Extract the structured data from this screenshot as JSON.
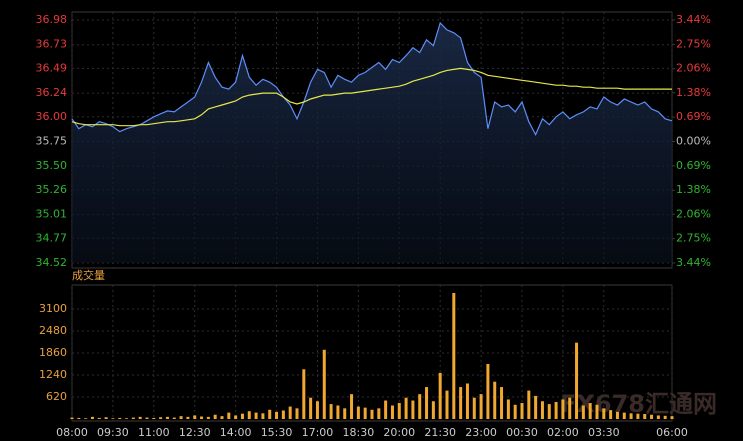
{
  "watermark": "FX678汇通网",
  "chart_data": [
    {
      "type": "line",
      "x": [
        "08:00",
        "08:15",
        "08:30",
        "08:45",
        "09:00",
        "09:15",
        "09:30",
        "09:45",
        "10:00",
        "10:15",
        "10:30",
        "10:45",
        "11:00",
        "11:15",
        "11:30",
        "11:45",
        "12:00",
        "12:15",
        "12:30",
        "12:45",
        "13:00",
        "13:15",
        "13:30",
        "13:45",
        "14:00",
        "14:15",
        "14:30",
        "14:45",
        "15:00",
        "15:15",
        "15:30",
        "15:45",
        "16:00",
        "16:15",
        "16:30",
        "16:45",
        "17:00",
        "17:15",
        "17:30",
        "17:45",
        "18:00",
        "18:15",
        "18:30",
        "18:45",
        "19:00",
        "19:15",
        "19:30",
        "19:45",
        "20:00",
        "20:15",
        "20:30",
        "20:45",
        "21:00",
        "21:15",
        "21:30",
        "21:45",
        "22:00",
        "22:15",
        "22:30",
        "22:45",
        "23:00",
        "23:15",
        "23:30",
        "23:45",
        "00:00",
        "00:15",
        "00:30",
        "00:45",
        "01:00",
        "01:15",
        "01:30",
        "01:45",
        "02:00",
        "02:15",
        "02:30",
        "02:45",
        "03:00",
        "03:15",
        "03:30",
        "03:45",
        "04:00",
        "04:15",
        "04:30",
        "04:45",
        "05:00",
        "05:15",
        "05:30",
        "05:45",
        "06:00"
      ],
      "xticks": [
        "08:00",
        "09:30",
        "11:00",
        "12:30",
        "14:00",
        "15:30",
        "17:00",
        "18:30",
        "20:00",
        "21:30",
        "23:00",
        "00:30",
        "02:00",
        "03:30",
        "06:00"
      ],
      "series": [
        {
          "color": "#5b8ff9",
          "values": [
            35.98,
            35.88,
            35.92,
            35.9,
            35.95,
            35.93,
            35.9,
            35.85,
            35.88,
            35.9,
            35.92,
            35.96,
            36.0,
            36.03,
            36.06,
            36.05,
            36.1,
            36.15,
            36.2,
            36.35,
            36.55,
            36.4,
            36.3,
            36.28,
            36.35,
            36.62,
            36.4,
            36.32,
            36.38,
            36.35,
            36.3,
            36.2,
            36.12,
            35.98,
            36.15,
            36.35,
            36.48,
            36.45,
            36.3,
            36.42,
            36.38,
            36.35,
            36.42,
            36.45,
            36.5,
            36.55,
            36.48,
            36.58,
            36.55,
            36.62,
            36.7,
            36.65,
            36.78,
            36.72,
            36.95,
            36.88,
            36.85,
            36.8,
            36.55,
            36.45,
            36.4,
            35.88,
            36.15,
            36.1,
            36.12,
            36.05,
            36.15,
            35.95,
            35.82,
            35.98,
            35.92,
            36.0,
            36.05,
            35.98,
            36.02,
            36.05,
            36.1,
            36.08,
            36.2,
            36.15,
            36.12,
            36.18,
            36.15,
            36.12,
            36.15,
            36.08,
            36.05,
            35.98,
            35.96
          ]
        },
        {
          "color": "#e6e84a",
          "values": [
            35.95,
            35.93,
            35.92,
            35.92,
            35.92,
            35.92,
            35.92,
            35.91,
            35.91,
            35.91,
            35.92,
            35.92,
            35.93,
            35.94,
            35.95,
            35.95,
            35.96,
            35.97,
            35.98,
            36.02,
            36.08,
            36.1,
            36.12,
            36.14,
            36.16,
            36.2,
            36.22,
            36.23,
            36.24,
            36.24,
            36.24,
            36.2,
            36.15,
            36.13,
            36.15,
            36.18,
            36.2,
            36.22,
            36.22,
            36.23,
            36.24,
            36.24,
            36.25,
            36.26,
            36.27,
            36.28,
            36.29,
            36.3,
            36.31,
            36.33,
            36.36,
            36.38,
            36.4,
            36.42,
            36.45,
            36.47,
            36.48,
            36.49,
            36.48,
            36.47,
            36.45,
            36.42,
            36.41,
            36.4,
            36.39,
            36.38,
            36.37,
            36.36,
            36.35,
            36.34,
            36.33,
            36.32,
            36.32,
            36.31,
            36.31,
            36.3,
            36.3,
            36.29,
            36.29,
            36.29,
            36.29,
            36.28,
            36.28,
            36.28,
            36.28,
            36.28,
            36.28,
            36.28,
            36.28
          ]
        }
      ],
      "ylim": [
        34.52,
        36.98
      ],
      "yticks": [
        36.98,
        36.73,
        36.49,
        36.24,
        {
          "value": 36,
          "label": "36.00"
        },
        35.75,
        {
          "value": 35.5,
          "label": "35.50"
        },
        35.26,
        35.01,
        34.77,
        34.52
      ],
      "y2lim": [
        -3.44,
        3.44
      ],
      "y2ticks": [
        {
          "value": 3.44,
          "label": "3.44%"
        },
        {
          "value": 2.75,
          "label": "2.75%"
        },
        {
          "value": 2.06,
          "label": "2.06%"
        },
        {
          "value": 1.38,
          "label": "1.38%"
        },
        {
          "value": 0.69,
          "label": "0.69%"
        },
        {
          "value": 0,
          "label": "0.00%"
        },
        {
          "value": -0.69,
          "label": "0.69%"
        },
        {
          "value": -1.38,
          "label": "1.38%"
        },
        {
          "value": -2.06,
          "label": "2.06%"
        },
        {
          "value": -2.75,
          "label": "2.75%"
        },
        {
          "value": -3.44,
          "label": "3.44%"
        }
      ],
      "grid": true
    },
    {
      "type": "bar",
      "title": "成交量",
      "color": "#f0a830",
      "values": [
        40,
        30,
        20,
        60,
        30,
        50,
        20,
        30,
        20,
        40,
        60,
        40,
        30,
        50,
        60,
        40,
        80,
        60,
        100,
        70,
        60,
        120,
        80,
        180,
        100,
        150,
        220,
        180,
        160,
        260,
        200,
        240,
        350,
        300,
        1400,
        600,
        500,
        1950,
        420,
        380,
        300,
        700,
        350,
        320,
        260,
        300,
        520,
        380,
        450,
        600,
        520,
        700,
        900,
        500,
        1300,
        800,
        3550,
        900,
        1000,
        600,
        700,
        1550,
        1050,
        900,
        550,
        400,
        450,
        800,
        650,
        500,
        420,
        480,
        550,
        600,
        2150,
        380,
        450,
        400,
        300,
        250,
        200,
        180,
        160,
        150,
        140,
        120,
        100,
        90,
        80
      ],
      "ylim": [
        0,
        3690
      ],
      "yticks": [
        620,
        1240,
        1860,
        2480,
        3100
      ],
      "grid": true
    }
  ]
}
